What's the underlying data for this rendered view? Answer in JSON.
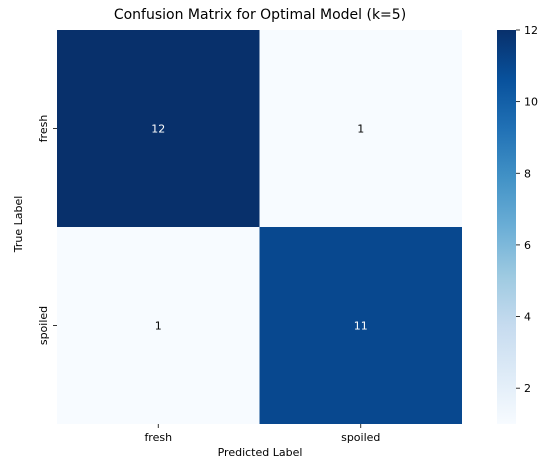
{
  "chart_data": {
    "type": "heatmap",
    "title": "Confusion Matrix for Optimal Model (k=5)",
    "xlabel": "Predicted Label",
    "ylabel": "True Label",
    "x_categories": [
      "fresh",
      "spoiled"
    ],
    "y_categories": [
      "fresh",
      "spoiled"
    ],
    "values": [
      [
        12,
        1
      ],
      [
        1,
        11
      ]
    ],
    "colormap": "Blues",
    "colorbar": {
      "min": 1,
      "max": 12,
      "ticks": [
        2,
        4,
        6,
        8,
        10,
        12
      ]
    },
    "grid": false
  }
}
